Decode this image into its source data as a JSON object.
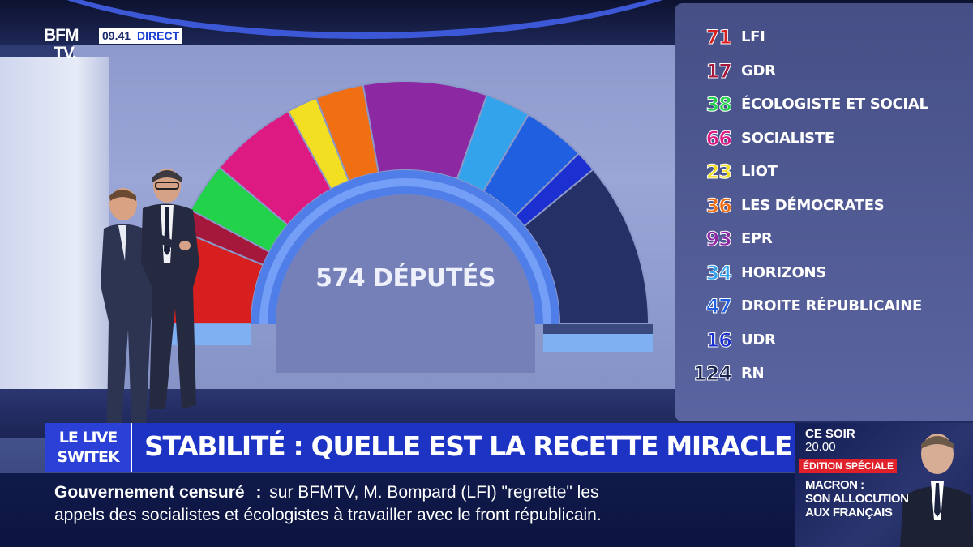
{
  "channel": {
    "logo": [
      "BFM",
      "TV."
    ],
    "time": "09.41",
    "live": "DIRECT"
  },
  "hemicycle": {
    "label": "574 DÉPUTÉS",
    "groups": [
      {
        "seats": 71,
        "name": "LFI",
        "color": "#d71f1f"
      },
      {
        "seats": 17,
        "name": "GDR",
        "color": "#a5173b"
      },
      {
        "seats": 38,
        "name": "ÉCOLOGISTE ET SOCIAL",
        "color": "#21d24a"
      },
      {
        "seats": 66,
        "name": "SOCIALISTE",
        "color": "#dd1a82"
      },
      {
        "seats": 23,
        "name": "LIOT",
        "color": "#f2df22"
      },
      {
        "seats": 36,
        "name": "LES DÉMOCRATES",
        "color": "#f06f12"
      },
      {
        "seats": 93,
        "name": "EPR",
        "color": "#8d28a3"
      },
      {
        "seats": 34,
        "name": "HORIZONS",
        "color": "#33a3ec"
      },
      {
        "seats": 47,
        "name": "DROITE RÉPUBLICAINE",
        "color": "#1f5fe0"
      },
      {
        "seats": 16,
        "name": "UDR",
        "color": "#1c2fd0"
      },
      {
        "seats": 124,
        "name": "RN",
        "color": "#243066"
      }
    ]
  },
  "banner": {
    "show_logo": [
      "LE LIVE",
      "SWITEK"
    ],
    "headline": "STABILITÉ : QUELLE EST LA RECETTE MIRACLE ?"
  },
  "ticker": {
    "topic": "Gouvernement censuré",
    "separator": ":",
    "line1": "sur BFMTV, M. Bompard (LFI) \"regrette\" les",
    "line2": "appels des socialistes et écologistes à travailler avec le front républicain."
  },
  "promo": {
    "when": "CE SOIR",
    "time": "20.00",
    "badge": "ÉDITION SPÉCIALE",
    "title": [
      "MACRON :",
      "SON ALLOCUTION",
      "AUX FRANÇAIS"
    ]
  }
}
